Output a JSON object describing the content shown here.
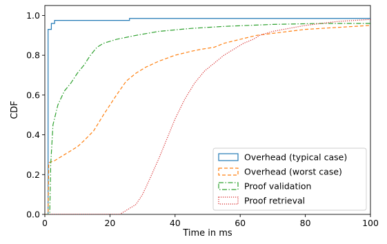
{
  "chart_data": {
    "type": "line",
    "subtype": "step-cdf",
    "xlabel": "Time in ms",
    "ylabel": "CDF",
    "xlim": [
      0,
      100
    ],
    "ylim": [
      0,
      1.05
    ],
    "xticks": [
      "0",
      "20",
      "40",
      "60",
      "80",
      "100"
    ],
    "yticks": [
      "0.0",
      "0.2",
      "0.4",
      "0.6",
      "0.8",
      "1.0"
    ],
    "grid": false,
    "legend_position": "lower-right",
    "series": [
      {
        "name": "Overhead (typical case)",
        "color": "#1f77b4",
        "dash": "solid",
        "points": [
          [
            0,
            0
          ],
          [
            1,
            0
          ],
          [
            1,
            0.93
          ],
          [
            2,
            0.93
          ],
          [
            2,
            0.96
          ],
          [
            3,
            0.96
          ],
          [
            3,
            0.975
          ],
          [
            26,
            0.975
          ],
          [
            26,
            0.985
          ],
          [
            100,
            0.985
          ]
        ]
      },
      {
        "name": "Overhead (worst case)",
        "color": "#ff7f0e",
        "dash": "dashed",
        "points": [
          [
            0,
            0
          ],
          [
            1,
            0
          ],
          [
            1.2,
            0.26
          ],
          [
            3,
            0.27
          ],
          [
            6,
            0.3
          ],
          [
            10,
            0.34
          ],
          [
            12,
            0.37
          ],
          [
            15,
            0.42
          ],
          [
            18,
            0.5
          ],
          [
            20,
            0.55
          ],
          [
            22,
            0.6
          ],
          [
            25,
            0.67
          ],
          [
            28,
            0.71
          ],
          [
            31,
            0.74
          ],
          [
            35,
            0.77
          ],
          [
            40,
            0.8
          ],
          [
            45,
            0.82
          ],
          [
            48,
            0.83
          ],
          [
            52,
            0.84
          ],
          [
            55,
            0.86
          ],
          [
            60,
            0.88
          ],
          [
            65,
            0.9
          ],
          [
            70,
            0.91
          ],
          [
            75,
            0.92
          ],
          [
            80,
            0.93
          ],
          [
            90,
            0.94
          ],
          [
            100,
            0.95
          ]
        ]
      },
      {
        "name": "Proof validation",
        "color": "#2ca02c",
        "dash": "dashdot",
        "points": [
          [
            0,
            0
          ],
          [
            1.5,
            0
          ],
          [
            1.8,
            0.25
          ],
          [
            2.5,
            0.45
          ],
          [
            4,
            0.55
          ],
          [
            6,
            0.62
          ],
          [
            8,
            0.66
          ],
          [
            10,
            0.71
          ],
          [
            12,
            0.75
          ],
          [
            14,
            0.8
          ],
          [
            16,
            0.84
          ],
          [
            18,
            0.86
          ],
          [
            22,
            0.88
          ],
          [
            28,
            0.9
          ],
          [
            35,
            0.92
          ],
          [
            45,
            0.935
          ],
          [
            55,
            0.945
          ],
          [
            70,
            0.955
          ],
          [
            85,
            0.96
          ],
          [
            100,
            0.96
          ]
        ]
      },
      {
        "name": "Proof retrieval",
        "color": "#d62728",
        "dash": "dotted",
        "points": [
          [
            0,
            0
          ],
          [
            23,
            0
          ],
          [
            26,
            0.03
          ],
          [
            28,
            0.05
          ],
          [
            30,
            0.1
          ],
          [
            32,
            0.17
          ],
          [
            35,
            0.28
          ],
          [
            38,
            0.4
          ],
          [
            40,
            0.48
          ],
          [
            43,
            0.58
          ],
          [
            46,
            0.66
          ],
          [
            49,
            0.72
          ],
          [
            52,
            0.76
          ],
          [
            55,
            0.8
          ],
          [
            58,
            0.83
          ],
          [
            61,
            0.86
          ],
          [
            64,
            0.88
          ],
          [
            66,
            0.9
          ],
          [
            70,
            0.92
          ],
          [
            75,
            0.935
          ],
          [
            80,
            0.95
          ],
          [
            85,
            0.96
          ],
          [
            90,
            0.97
          ],
          [
            95,
            0.975
          ],
          [
            100,
            0.98
          ]
        ]
      }
    ]
  }
}
